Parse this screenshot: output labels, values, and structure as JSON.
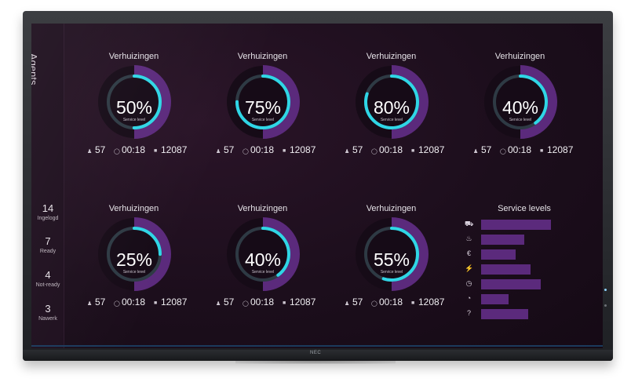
{
  "sidebar": {
    "title": "Agents",
    "stats": [
      {
        "value": "14",
        "label": "Ingelogd"
      },
      {
        "value": "7",
        "label": "Ready"
      },
      {
        "value": "4",
        "label": "Not-ready"
      },
      {
        "value": "3",
        "label": "Nawerk"
      }
    ]
  },
  "gauges": [
    {
      "title": "Verhuizingen",
      "percent": 50,
      "percent_label": "50%",
      "sublabel": "Service level",
      "agents": "57",
      "time": "00:18",
      "count": "12087"
    },
    {
      "title": "Verhuizingen",
      "percent": 75,
      "percent_label": "75%",
      "sublabel": "Service level",
      "agents": "57",
      "time": "00:18",
      "count": "12087"
    },
    {
      "title": "Verhuizingen",
      "percent": 80,
      "percent_label": "80%",
      "sublabel": "Service level",
      "agents": "57",
      "time": "00:18",
      "count": "12087"
    },
    {
      "title": "Verhuizingen",
      "percent": 40,
      "percent_label": "40%",
      "sublabel": "Service level",
      "agents": "57",
      "time": "00:18",
      "count": "12087"
    },
    {
      "title": "Verhuizingen",
      "percent": 25,
      "percent_label": "25%",
      "sublabel": "Service level",
      "agents": "57",
      "time": "00:18",
      "count": "12087"
    },
    {
      "title": "Verhuizingen",
      "percent": 40,
      "percent_label": "40%",
      "sublabel": "Service level",
      "agents": "57",
      "time": "00:18",
      "count": "12087"
    },
    {
      "title": "Verhuizingen",
      "percent": 55,
      "percent_label": "55%",
      "sublabel": "Service level",
      "agents": "57",
      "time": "00:18",
      "count": "12087"
    }
  ],
  "service_levels": {
    "title": "Service levels",
    "rows": [
      {
        "icon": "truck-icon",
        "glyph": "⛟",
        "value": 0.77
      },
      {
        "icon": "fire-icon",
        "glyph": "♨",
        "value": 0.48
      },
      {
        "icon": "euro-icon",
        "glyph": "€",
        "value": 0.38
      },
      {
        "icon": "plug-icon",
        "glyph": "⚡",
        "value": 0.55
      },
      {
        "icon": "clock-icon",
        "glyph": "◷",
        "value": 0.66
      },
      {
        "icon": "gauge-icon",
        "glyph": "◔",
        "value": 0.3
      },
      {
        "icon": "help-icon",
        "glyph": "?",
        "value": 0.52
      }
    ]
  },
  "monitor": {
    "brand": "NEC"
  },
  "colors": {
    "ring_purple": "#5b2a7c",
    "ring_track": "#2e3a44",
    "ring_cyan": "#2fd6e6",
    "screen_bg": "#1c0e1c"
  }
}
